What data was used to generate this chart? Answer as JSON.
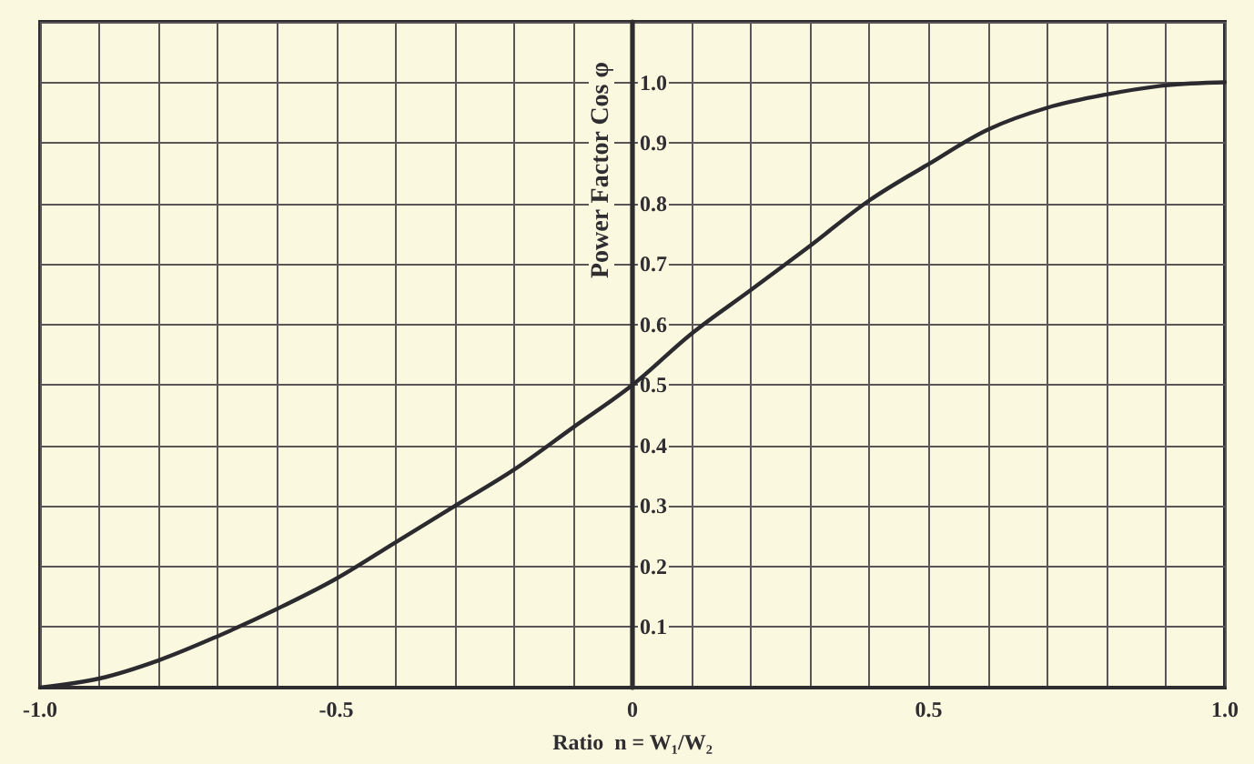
{
  "chart_data": {
    "type": "line",
    "xlabel": "Ratio  n = W₁/W₂",
    "ylabel": "Power Factor Cos φ",
    "x": [
      -1,
      -0.9,
      -0.8,
      -0.7,
      -0.6,
      -0.5,
      -0.4,
      -0.3,
      -0.2,
      -0.1,
      0,
      0.1,
      0.2,
      0.3,
      0.4,
      0.5,
      0.6,
      0.7,
      0.8,
      0.9,
      1
    ],
    "series": [
      {
        "color": "#2b2a2e",
        "values": [
          0,
          0.015,
          0.045,
          0.085,
          0.13,
          0.18,
          0.24,
          0.3,
          0.36,
          0.43,
          0.5,
          0.585,
          0.657,
          0.73,
          0.805,
          0.865,
          0.922,
          0.958,
          0.98,
          0.995,
          1
        ]
      }
    ],
    "xlim": [
      -1,
      1
    ],
    "ylim": [
      0,
      1.1
    ],
    "xticks": [
      {
        "value": -1,
        "label": "-1.0"
      },
      {
        "value": -0.9,
        "label": null
      },
      {
        "value": -0.8,
        "label": null
      },
      {
        "value": -0.7,
        "label": null
      },
      {
        "value": -0.6,
        "label": null
      },
      -0.5,
      {
        "value": -0.4,
        "label": null
      },
      {
        "value": -0.3,
        "label": null
      },
      {
        "value": -0.2,
        "label": null
      },
      {
        "value": -0.1,
        "label": null
      },
      0,
      {
        "value": 0.1,
        "label": null
      },
      {
        "value": 0.2,
        "label": null
      },
      {
        "value": 0.3,
        "label": null
      },
      {
        "value": 0.4,
        "label": null
      },
      0.5,
      {
        "value": 0.6,
        "label": null
      },
      {
        "value": 0.7,
        "label": null
      },
      {
        "value": 0.8,
        "label": null
      },
      {
        "value": 0.9,
        "label": null
      },
      {
        "value": 1,
        "label": "1.0"
      }
    ],
    "yticks": [
      {
        "value": 0,
        "label": null
      },
      0.1,
      0.2,
      0.3,
      0.4,
      0.5,
      0.6,
      0.7,
      0.8,
      0.9,
      {
        "value": 1,
        "label": "1.0"
      },
      {
        "value": 1.1,
        "label": null
      }
    ],
    "grid": true,
    "line_style": "solid"
  }
}
